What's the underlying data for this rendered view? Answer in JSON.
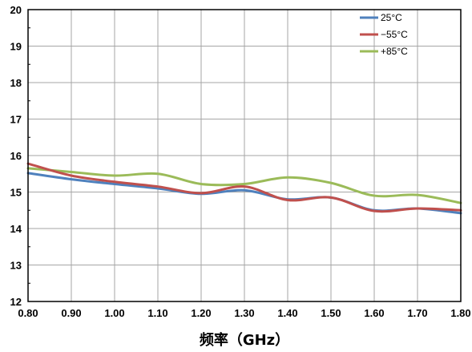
{
  "chart_data": {
    "type": "line",
    "title": "",
    "xlabel": "频率（GHz）",
    "ylabel": "",
    "xlim": [
      0.8,
      1.8
    ],
    "ylim": [
      12,
      20
    ],
    "x_ticks": [
      "0.80",
      "0.90",
      "1.00",
      "1.10",
      "1.20",
      "1.30",
      "1.40",
      "1.50",
      "1.60",
      "1.70",
      "1.80"
    ],
    "y_ticks": [
      "12",
      "13",
      "14",
      "15",
      "16",
      "17",
      "18",
      "19",
      "20"
    ],
    "grid": true,
    "legend_position": "top-right",
    "x": [
      0.8,
      0.9,
      1.0,
      1.1,
      1.2,
      1.3,
      1.4,
      1.5,
      1.6,
      1.7,
      1.8
    ],
    "series": [
      {
        "name": "25°C",
        "color": "#4f81bd",
        "values": [
          15.52,
          15.35,
          15.22,
          15.1,
          14.95,
          15.05,
          14.8,
          14.85,
          14.5,
          14.55,
          14.42
        ]
      },
      {
        "name": "−55°C",
        "color": "#c0504d",
        "values": [
          15.78,
          15.45,
          15.28,
          15.15,
          14.97,
          15.15,
          14.78,
          14.85,
          14.48,
          14.55,
          14.5
        ]
      },
      {
        "name": "+85°C",
        "color": "#9bbb59",
        "values": [
          15.65,
          15.55,
          15.45,
          15.5,
          15.22,
          15.22,
          15.4,
          15.25,
          14.9,
          14.92,
          14.7
        ]
      }
    ]
  }
}
